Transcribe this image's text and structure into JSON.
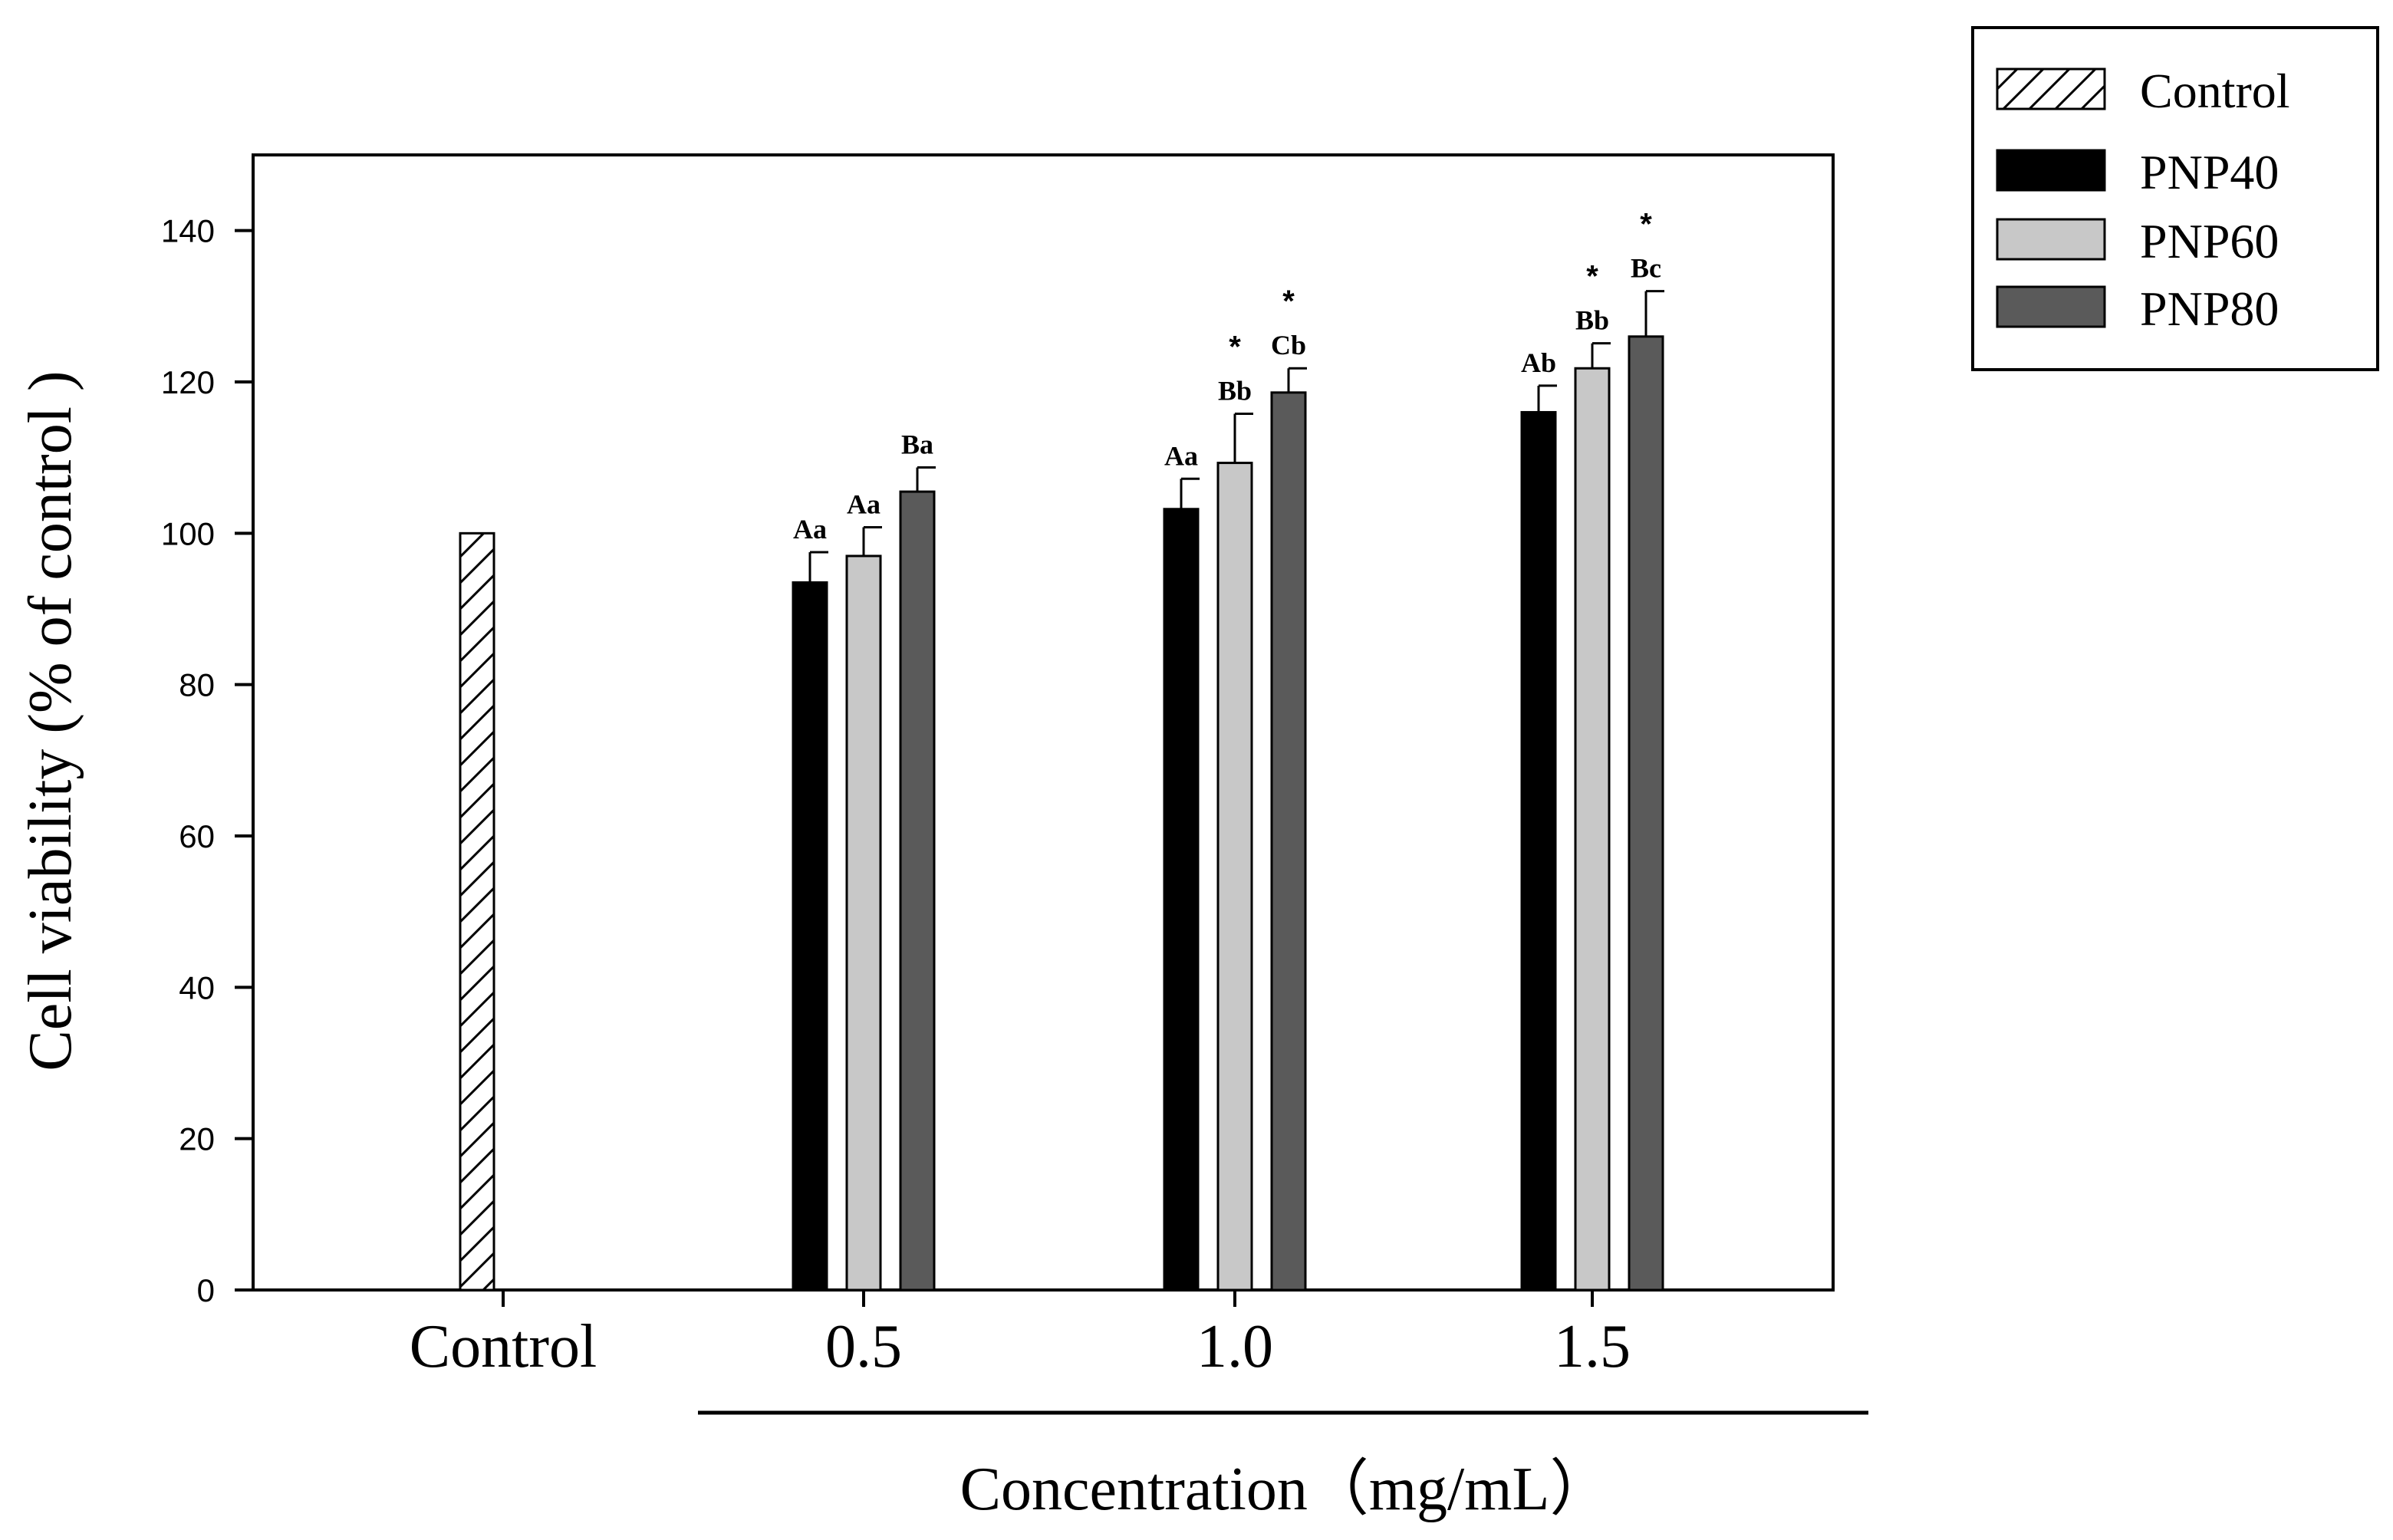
{
  "chart_data": {
    "type": "bar",
    "title": "",
    "ylabel": "Cell viability (% of control )",
    "xlabel": "Concentration（mg/mL）",
    "ylim": [
      0,
      150
    ],
    "yticks": [
      0,
      20,
      40,
      60,
      80,
      100,
      120,
      140
    ],
    "categories": [
      "Control",
      "0.5",
      "1.0",
      "1.5"
    ],
    "legend_position": "top-right, outside plot",
    "colors": {
      "Control": "#ffffff",
      "PNP40": "#000000",
      "PNP60": "#c8c8c8",
      "PNP80": "#5a5a5a"
    },
    "series": [
      {
        "name": "Control",
        "pattern": "hatch",
        "values": [
          100,
          null,
          null,
          null
        ],
        "errors": [
          0,
          null,
          null,
          null
        ],
        "labels": [
          "",
          "",
          "",
          ""
        ],
        "stars": [
          false,
          false,
          false,
          false
        ]
      },
      {
        "name": "PNP40",
        "values": [
          null,
          93.5,
          103.2,
          116.0
        ],
        "errors": [
          null,
          4.0,
          4.0,
          3.5
        ],
        "labels": [
          "",
          "Aa",
          "Aa",
          "Ab"
        ],
        "stars": [
          false,
          false,
          false,
          false
        ]
      },
      {
        "name": "PNP60",
        "values": [
          null,
          97.0,
          109.3,
          121.8
        ],
        "errors": [
          null,
          3.8,
          6.5,
          3.3
        ],
        "labels": [
          "",
          "Aa",
          "Bb",
          "Bb"
        ],
        "stars": [
          false,
          false,
          true,
          true
        ]
      },
      {
        "name": "PNP80",
        "values": [
          null,
          105.5,
          118.6,
          126.0
        ],
        "errors": [
          null,
          3.2,
          3.2,
          6.0
        ],
        "labels": [
          "",
          "Ba",
          "Cb",
          "Bc"
        ],
        "stars": [
          false,
          false,
          true,
          true
        ]
      }
    ],
    "star_symbol": "*"
  }
}
